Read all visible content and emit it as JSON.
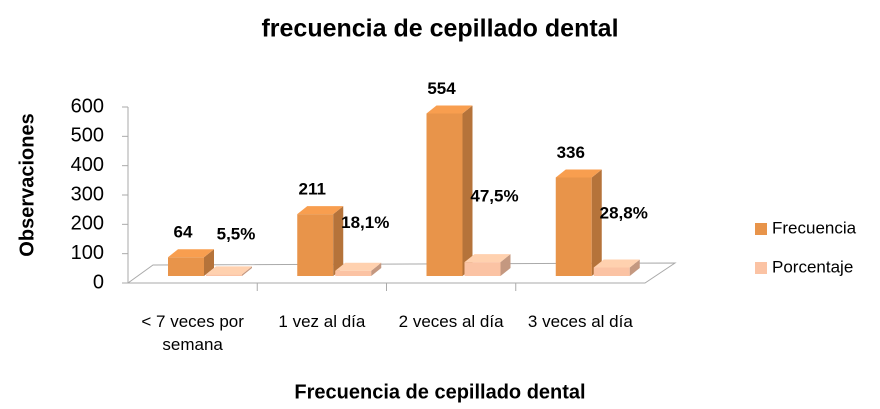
{
  "chart_data": {
    "type": "bar3d",
    "title": "frecuencia de cepillado dental",
    "x_label": "Frecuencia de cepillado dental",
    "y_label": "Observaciones",
    "categories": [
      "< 7 veces por semana",
      "1 vez al día",
      "2 veces al día",
      "3 veces al día"
    ],
    "series": [
      {
        "name": "Frecuencia",
        "color": "#e8944a",
        "values": [
          64,
          211,
          554,
          336
        ]
      },
      {
        "name": "Porcentaje",
        "color": "#fbc3a4",
        "values": [
          5.5,
          18.1,
          47.5,
          28.8
        ],
        "value_labels": [
          "5,5%",
          "18,1%",
          "47,5%",
          "28,8%"
        ]
      }
    ],
    "ylim": [
      0,
      600
    ],
    "yticks": [
      0,
      100,
      200,
      300,
      400,
      500,
      600
    ],
    "legend": "right"
  }
}
